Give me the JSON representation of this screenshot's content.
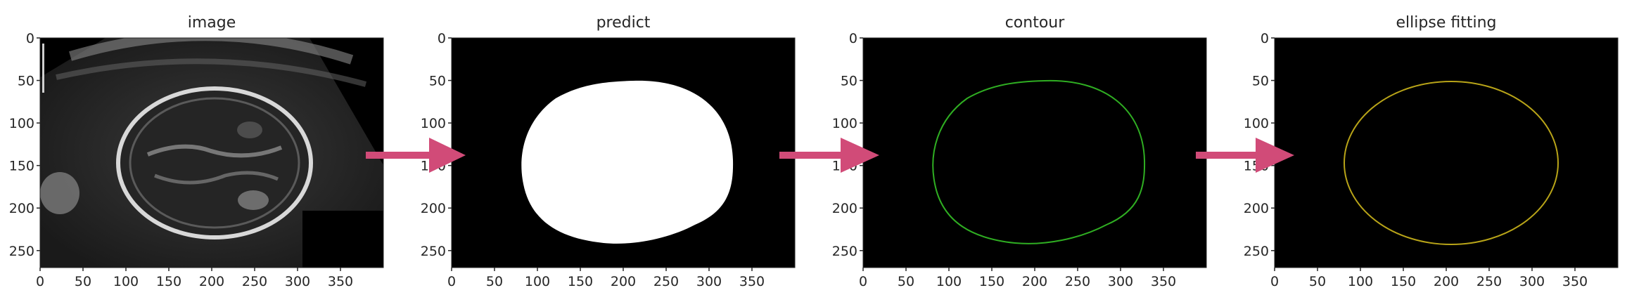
{
  "panels": [
    {
      "id": "image",
      "title": "image"
    },
    {
      "id": "predict",
      "title": "predict"
    },
    {
      "id": "contour",
      "title": "contour"
    },
    {
      "id": "ellipse",
      "title": "ellipse fitting"
    }
  ],
  "axes": {
    "x_ticks": [
      "0",
      "50",
      "100",
      "150",
      "200",
      "250",
      "300",
      "350"
    ],
    "y_ticks": [
      "0",
      "50",
      "100",
      "150",
      "200",
      "250"
    ],
    "x_range": [
      0,
      400
    ],
    "y_range": [
      0,
      270
    ]
  },
  "colors": {
    "arrow": "#d14b78",
    "contour": "#2fae22",
    "ellipse": "#b8a418",
    "mask": "#ffffff",
    "background": "#000000"
  },
  "icons": {
    "arrow": "right-arrow-icon"
  }
}
